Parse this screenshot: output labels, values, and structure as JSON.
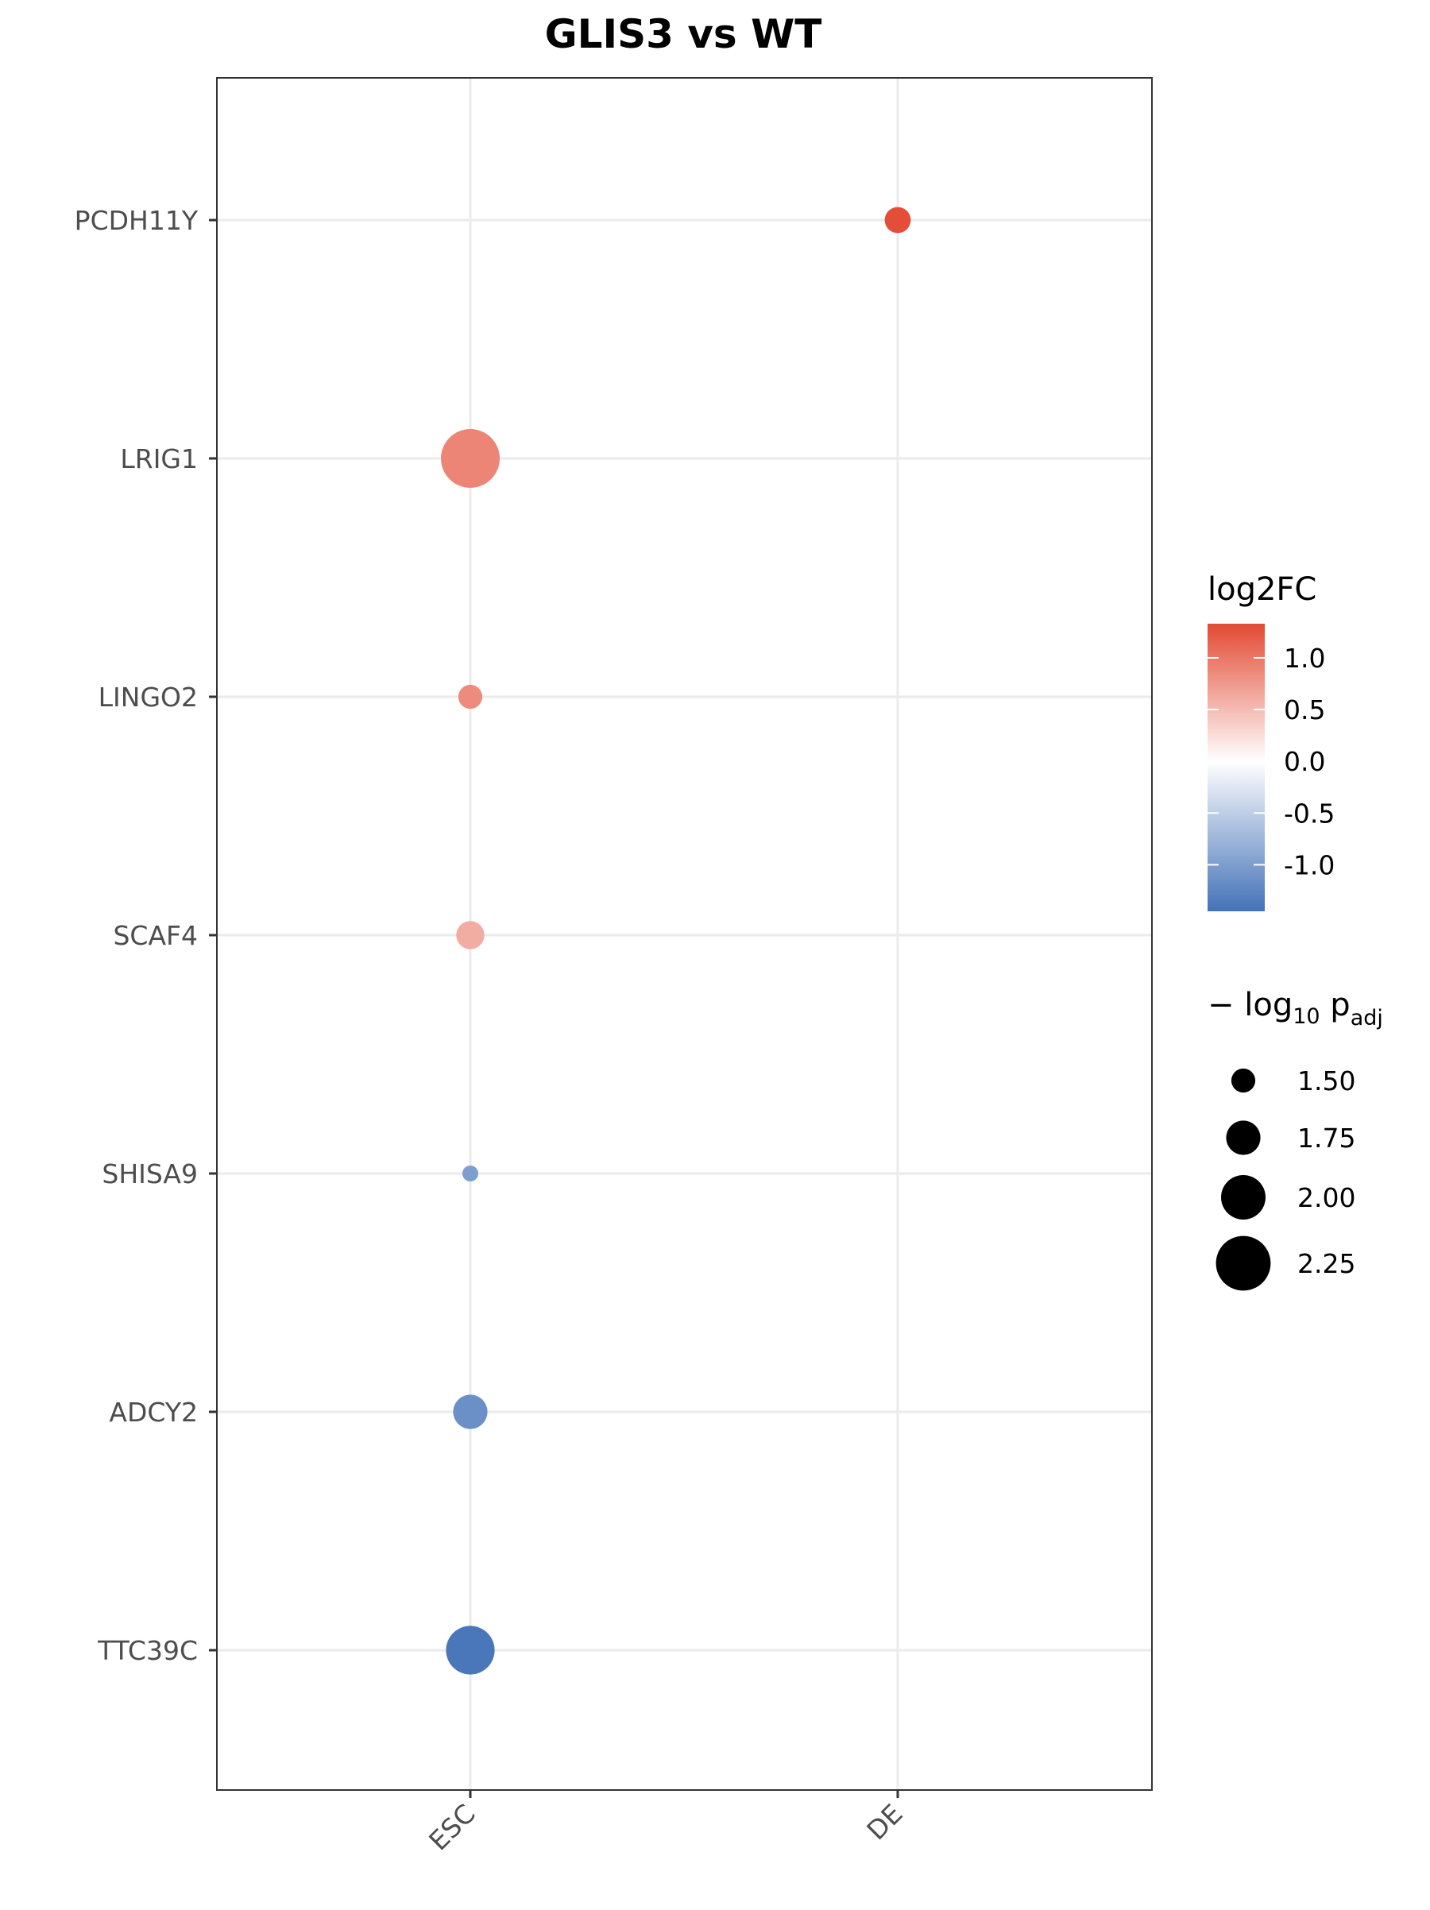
{
  "chart_data": {
    "type": "scatter",
    "title": "GLIS3 vs WT",
    "xlabel": "",
    "ylabel": "",
    "categories_x": [
      "ESC",
      "DE"
    ],
    "categories_y": [
      "PCDH11Y",
      "LRIG1",
      "LINGO2",
      "SCAF4",
      "SHISA9",
      "ADCY2",
      "TTC39C"
    ],
    "points": [
      {
        "gene": "PCDH11Y",
        "stage": "DE",
        "log2FC": 1.3,
        "neglog10_padj": 1.55
      },
      {
        "gene": "LRIG1",
        "stage": "ESC",
        "log2FC": 0.9,
        "neglog10_padj": 2.35
      },
      {
        "gene": "LINGO2",
        "stage": "ESC",
        "log2FC": 0.85,
        "neglog10_padj": 1.5
      },
      {
        "gene": "SCAF4",
        "stage": "ESC",
        "log2FC": 0.6,
        "neglog10_padj": 1.6
      },
      {
        "gene": "SHISA9",
        "stage": "ESC",
        "log2FC": -1.0,
        "neglog10_padj": 1.3
      },
      {
        "gene": "ADCY2",
        "stage": "ESC",
        "log2FC": -1.15,
        "neglog10_padj": 1.75
      },
      {
        "gene": "TTC39C",
        "stage": "ESC",
        "log2FC": -1.4,
        "neglog10_padj": 2.1
      }
    ],
    "color_legend": {
      "title": "log2FC",
      "ticks": [
        {
          "value": 1.0,
          "label": "1.0"
        },
        {
          "value": 0.5,
          "label": "0.5"
        },
        {
          "value": 0.0,
          "label": "0.0"
        },
        {
          "value": -0.5,
          "label": "-0.5"
        },
        {
          "value": -1.0,
          "label": "-1.0"
        }
      ],
      "range": [
        -1.45,
        1.33
      ],
      "low_color": "#4472b8",
      "mid_color": "#ffffff",
      "high_color": "#e34a33"
    },
    "size_legend": {
      "title_prefix": "− log",
      "title_sub1": "10",
      "title_mid": " p",
      "title_sub2": "adj",
      "entries": [
        {
          "value": 1.5,
          "label": "1.50"
        },
        {
          "value": 1.75,
          "label": "1.75"
        },
        {
          "value": 2.0,
          "label": "2.00"
        },
        {
          "value": 2.25,
          "label": "2.25"
        }
      ]
    },
    "grid": true,
    "legend_position": "right"
  }
}
